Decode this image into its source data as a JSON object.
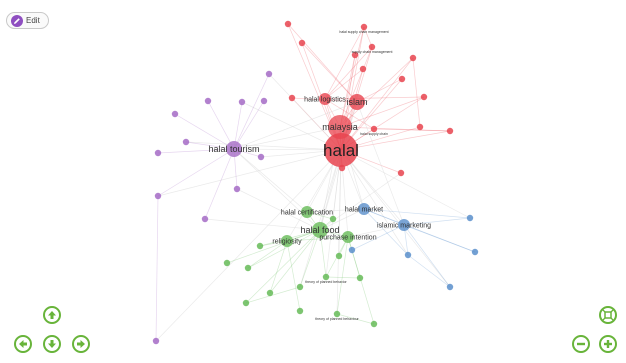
{
  "toolbar": {
    "edit_label": "Edit"
  },
  "colors": {
    "red": "#e8444f",
    "purple": "#a56bc5",
    "green": "#66bb58",
    "blue": "#5a8fcb",
    "edge": "#dcdcdc",
    "control": "#68b43a"
  },
  "icons": {
    "edit": "pencil-icon",
    "up": "arrow-up-icon",
    "down": "arrow-down-icon",
    "left": "arrow-left-icon",
    "right": "arrow-right-icon",
    "fit": "fit-screen-icon",
    "zoom_out": "zoom-out-icon",
    "zoom_in": "zoom-in-icon"
  },
  "graph": {
    "nodes": [
      {
        "id": "halal",
        "label": "halal",
        "cluster": "red",
        "size": "xl"
      },
      {
        "id": "malaysia",
        "label": "malaysia",
        "cluster": "red",
        "size": "l"
      },
      {
        "id": "islam",
        "label": "islam",
        "cluster": "red",
        "size": "m"
      },
      {
        "id": "halal_logistics",
        "label": "halal logistics",
        "cluster": "red",
        "size": "s"
      },
      {
        "id": "r1",
        "label": "",
        "cluster": "red",
        "size": "xs"
      },
      {
        "id": "r2",
        "label": "halal supply chain management",
        "cluster": "red",
        "size": "xs"
      },
      {
        "id": "r3",
        "label": "",
        "cluster": "red",
        "size": "xs"
      },
      {
        "id": "r4",
        "label": "supply chain management",
        "cluster": "red",
        "size": "xs"
      },
      {
        "id": "r5",
        "label": "",
        "cluster": "red",
        "size": "xs"
      },
      {
        "id": "r6",
        "label": "",
        "cluster": "red",
        "size": "xs"
      },
      {
        "id": "r7",
        "label": "",
        "cluster": "red",
        "size": "xs"
      },
      {
        "id": "r8",
        "label": "",
        "cluster": "red",
        "size": "xs"
      },
      {
        "id": "r9",
        "label": "",
        "cluster": "red",
        "size": "xs"
      },
      {
        "id": "r10",
        "label": "",
        "cluster": "red",
        "size": "xs"
      },
      {
        "id": "r11",
        "label": "",
        "cluster": "red",
        "size": "xs"
      },
      {
        "id": "r12",
        "label": "halal supply chain",
        "cluster": "red",
        "size": "xs"
      },
      {
        "id": "r13",
        "label": "",
        "cluster": "red",
        "size": "xs"
      },
      {
        "id": "r14",
        "label": "",
        "cluster": "red",
        "size": "xs"
      },
      {
        "id": "r15",
        "label": "",
        "cluster": "red",
        "size": "xs"
      },
      {
        "id": "halal_tourism",
        "label": "halal tourism",
        "cluster": "purple",
        "size": "m"
      },
      {
        "id": "p1",
        "label": "",
        "cluster": "purple",
        "size": "xs"
      },
      {
        "id": "p2",
        "label": "",
        "cluster": "purple",
        "size": "xs"
      },
      {
        "id": "p3",
        "label": "",
        "cluster": "purple",
        "size": "xs"
      },
      {
        "id": "p4",
        "label": "",
        "cluster": "purple",
        "size": "xs"
      },
      {
        "id": "p5",
        "label": "",
        "cluster": "purple",
        "size": "xs"
      },
      {
        "id": "p6",
        "label": "",
        "cluster": "purple",
        "size": "xs"
      },
      {
        "id": "p7",
        "label": "",
        "cluster": "purple",
        "size": "xs"
      },
      {
        "id": "p8",
        "label": "",
        "cluster": "purple",
        "size": "xs"
      },
      {
        "id": "p9",
        "label": "",
        "cluster": "purple",
        "size": "xs"
      },
      {
        "id": "p10",
        "label": "",
        "cluster": "purple",
        "size": "xs"
      },
      {
        "id": "p11",
        "label": "",
        "cluster": "purple",
        "size": "xs"
      },
      {
        "id": "p12",
        "label": "",
        "cluster": "purple",
        "size": "xs"
      },
      {
        "id": "halal_food",
        "label": "halal food",
        "cluster": "green",
        "size": "m"
      },
      {
        "id": "halal_certification",
        "label": "halal certification",
        "cluster": "green",
        "size": "s"
      },
      {
        "id": "purchase_intention",
        "label": "purchase intention",
        "cluster": "green",
        "size": "s"
      },
      {
        "id": "religiosity",
        "label": "religiosity",
        "cluster": "green",
        "size": "s"
      },
      {
        "id": "g1",
        "label": "",
        "cluster": "green",
        "size": "xs"
      },
      {
        "id": "g2",
        "label": "",
        "cluster": "green",
        "size": "xs"
      },
      {
        "id": "g3",
        "label": "",
        "cluster": "green",
        "size": "xs"
      },
      {
        "id": "g4",
        "label": "",
        "cluster": "green",
        "size": "xs"
      },
      {
        "id": "g5",
        "label": "",
        "cluster": "green",
        "size": "xs"
      },
      {
        "id": "g6",
        "label": "theory of planned behavior",
        "cluster": "green",
        "size": "xs"
      },
      {
        "id": "g7",
        "label": "",
        "cluster": "green",
        "size": "xs"
      },
      {
        "id": "g8",
        "label": "",
        "cluster": "green",
        "size": "xs"
      },
      {
        "id": "g9",
        "label": "",
        "cluster": "green",
        "size": "xs"
      },
      {
        "id": "g10",
        "label": "",
        "cluster": "green",
        "size": "xs"
      },
      {
        "id": "g11",
        "label": "theory of planned behaviour",
        "cluster": "green",
        "size": "xs"
      },
      {
        "id": "g12",
        "label": "",
        "cluster": "green",
        "size": "xs"
      },
      {
        "id": "g13",
        "label": "",
        "cluster": "green",
        "size": "xs"
      },
      {
        "id": "halal_market",
        "label": "halal market",
        "cluster": "blue",
        "size": "s"
      },
      {
        "id": "islamic_marketing",
        "label": "islamic marketing",
        "cluster": "blue",
        "size": "s"
      },
      {
        "id": "b1",
        "label": "",
        "cluster": "blue",
        "size": "xs"
      },
      {
        "id": "b2",
        "label": "",
        "cluster": "blue",
        "size": "xs"
      },
      {
        "id": "b3",
        "label": "",
        "cluster": "blue",
        "size": "xs"
      },
      {
        "id": "b4",
        "label": "",
        "cluster": "blue",
        "size": "xs"
      },
      {
        "id": "b5",
        "label": "",
        "cluster": "blue",
        "size": "xs"
      }
    ],
    "edges": [
      [
        "halal",
        "malaysia"
      ],
      [
        "halal",
        "islam"
      ],
      [
        "halal",
        "halal_logistics"
      ],
      [
        "halal",
        "halal_tourism"
      ],
      [
        "halal",
        "halal_food"
      ],
      [
        "halal",
        "halal_certification"
      ],
      [
        "halal",
        "halal_market"
      ],
      [
        "halal",
        "islamic_marketing"
      ],
      [
        "halal",
        "purchase_intention"
      ],
      [
        "halal",
        "religiosity"
      ],
      [
        "halal",
        "r1"
      ],
      [
        "halal",
        "r2"
      ],
      [
        "halal",
        "r3"
      ],
      [
        "halal",
        "r4"
      ],
      [
        "halal",
        "r5"
      ],
      [
        "halal",
        "r6"
      ],
      [
        "halal",
        "r7"
      ],
      [
        "halal",
        "r8"
      ],
      [
        "halal",
        "r9"
      ],
      [
        "halal",
        "r10"
      ],
      [
        "halal",
        "r11"
      ],
      [
        "halal",
        "r12"
      ],
      [
        "halal",
        "r13"
      ],
      [
        "halal",
        "r14"
      ],
      [
        "halal",
        "r15"
      ],
      [
        "halal",
        "p1"
      ],
      [
        "halal",
        "p3"
      ],
      [
        "halal",
        "p6"
      ],
      [
        "halal",
        "p8"
      ],
      [
        "halal",
        "p10"
      ],
      [
        "halal",
        "g1"
      ],
      [
        "halal",
        "g3"
      ],
      [
        "halal",
        "g6"
      ],
      [
        "halal",
        "g9"
      ],
      [
        "halal",
        "g11"
      ],
      [
        "halal",
        "b1"
      ],
      [
        "halal",
        "b3"
      ],
      [
        "halal",
        "b4"
      ],
      [
        "malaysia",
        "islam"
      ],
      [
        "malaysia",
        "halal_logistics"
      ],
      [
        "malaysia",
        "halal_tourism"
      ],
      [
        "malaysia",
        "halal_food"
      ],
      [
        "malaysia",
        "r2"
      ],
      [
        "malaysia",
        "r4"
      ],
      [
        "malaysia",
        "r5"
      ],
      [
        "malaysia",
        "r6"
      ],
      [
        "malaysia",
        "r10"
      ],
      [
        "malaysia",
        "r13"
      ],
      [
        "malaysia",
        "halal_market"
      ],
      [
        "islam",
        "r1"
      ],
      [
        "islam",
        "r3"
      ],
      [
        "islam",
        "r8"
      ],
      [
        "islam",
        "r9"
      ],
      [
        "islam",
        "halal_tourism"
      ],
      [
        "islam",
        "halal_food"
      ],
      [
        "islam",
        "islamic_marketing"
      ],
      [
        "halal_logistics",
        "r2"
      ],
      [
        "halal_logistics",
        "r4"
      ],
      [
        "halal_logistics",
        "r12"
      ],
      [
        "halal_logistics",
        "r7"
      ],
      [
        "halal_logistics",
        "r10"
      ],
      [
        "r12",
        "r13"
      ],
      [
        "r2",
        "r4"
      ],
      [
        "r6",
        "r11"
      ],
      [
        "r14",
        "malaysia"
      ],
      [
        "r15",
        "halal_food"
      ],
      [
        "halal_tourism",
        "p1"
      ],
      [
        "halal_tourism",
        "p2"
      ],
      [
        "halal_tourism",
        "p3"
      ],
      [
        "halal_tourism",
        "p4"
      ],
      [
        "halal_tourism",
        "p5"
      ],
      [
        "halal_tourism",
        "p6"
      ],
      [
        "halal_tourism",
        "p7"
      ],
      [
        "halal_tourism",
        "p8"
      ],
      [
        "halal_tourism",
        "p9"
      ],
      [
        "halal_tourism",
        "p10"
      ],
      [
        "halal_tourism",
        "p11"
      ],
      [
        "halal_tourism",
        "halal_food"
      ],
      [
        "halal_tourism",
        "halal_certification"
      ],
      [
        "p10",
        "p12"
      ],
      [
        "p9",
        "halal_food"
      ],
      [
        "p12",
        "halal"
      ],
      [
        "p11",
        "halal_food"
      ],
      [
        "halal_food",
        "halal_certification"
      ],
      [
        "halal_food",
        "purchase_intention"
      ],
      [
        "halal_food",
        "religiosity"
      ],
      [
        "halal_food",
        "halal_market"
      ],
      [
        "halal_food",
        "g1"
      ],
      [
        "halal_food",
        "g2"
      ],
      [
        "halal_food",
        "g4"
      ],
      [
        "halal_food",
        "g5"
      ],
      [
        "halal_food",
        "g6"
      ],
      [
        "halal_food",
        "g8"
      ],
      [
        "halal_food",
        "g9"
      ],
      [
        "halal_food",
        "g10"
      ],
      [
        "purchase_intention",
        "g3"
      ],
      [
        "purchase_intention",
        "g6"
      ],
      [
        "purchase_intention",
        "g7"
      ],
      [
        "purchase_intention",
        "g11"
      ],
      [
        "purchase_intention",
        "g13"
      ],
      [
        "purchase_intention",
        "religiosity"
      ],
      [
        "religiosity",
        "g2"
      ],
      [
        "religiosity",
        "g5"
      ],
      [
        "religiosity",
        "g12"
      ],
      [
        "religiosity",
        "g8"
      ],
      [
        "halal_certification",
        "g1"
      ],
      [
        "halal_certification",
        "halal_market"
      ],
      [
        "g6",
        "g7"
      ],
      [
        "g9",
        "g10"
      ],
      [
        "g11",
        "g13"
      ],
      [
        "halal_market",
        "islamic_marketing"
      ],
      [
        "halal_market",
        "b1"
      ],
      [
        "halal_market",
        "b2"
      ],
      [
        "halal_market",
        "b3"
      ],
      [
        "islamic_marketing",
        "b1"
      ],
      [
        "islamic_marketing",
        "b2"
      ],
      [
        "islamic_marketing",
        "b3"
      ],
      [
        "islamic_marketing",
        "b4"
      ],
      [
        "islamic_marketing",
        "b5"
      ],
      [
        "islamic_marketing",
        "purchase_intention"
      ],
      [
        "b3",
        "b4"
      ]
    ]
  }
}
